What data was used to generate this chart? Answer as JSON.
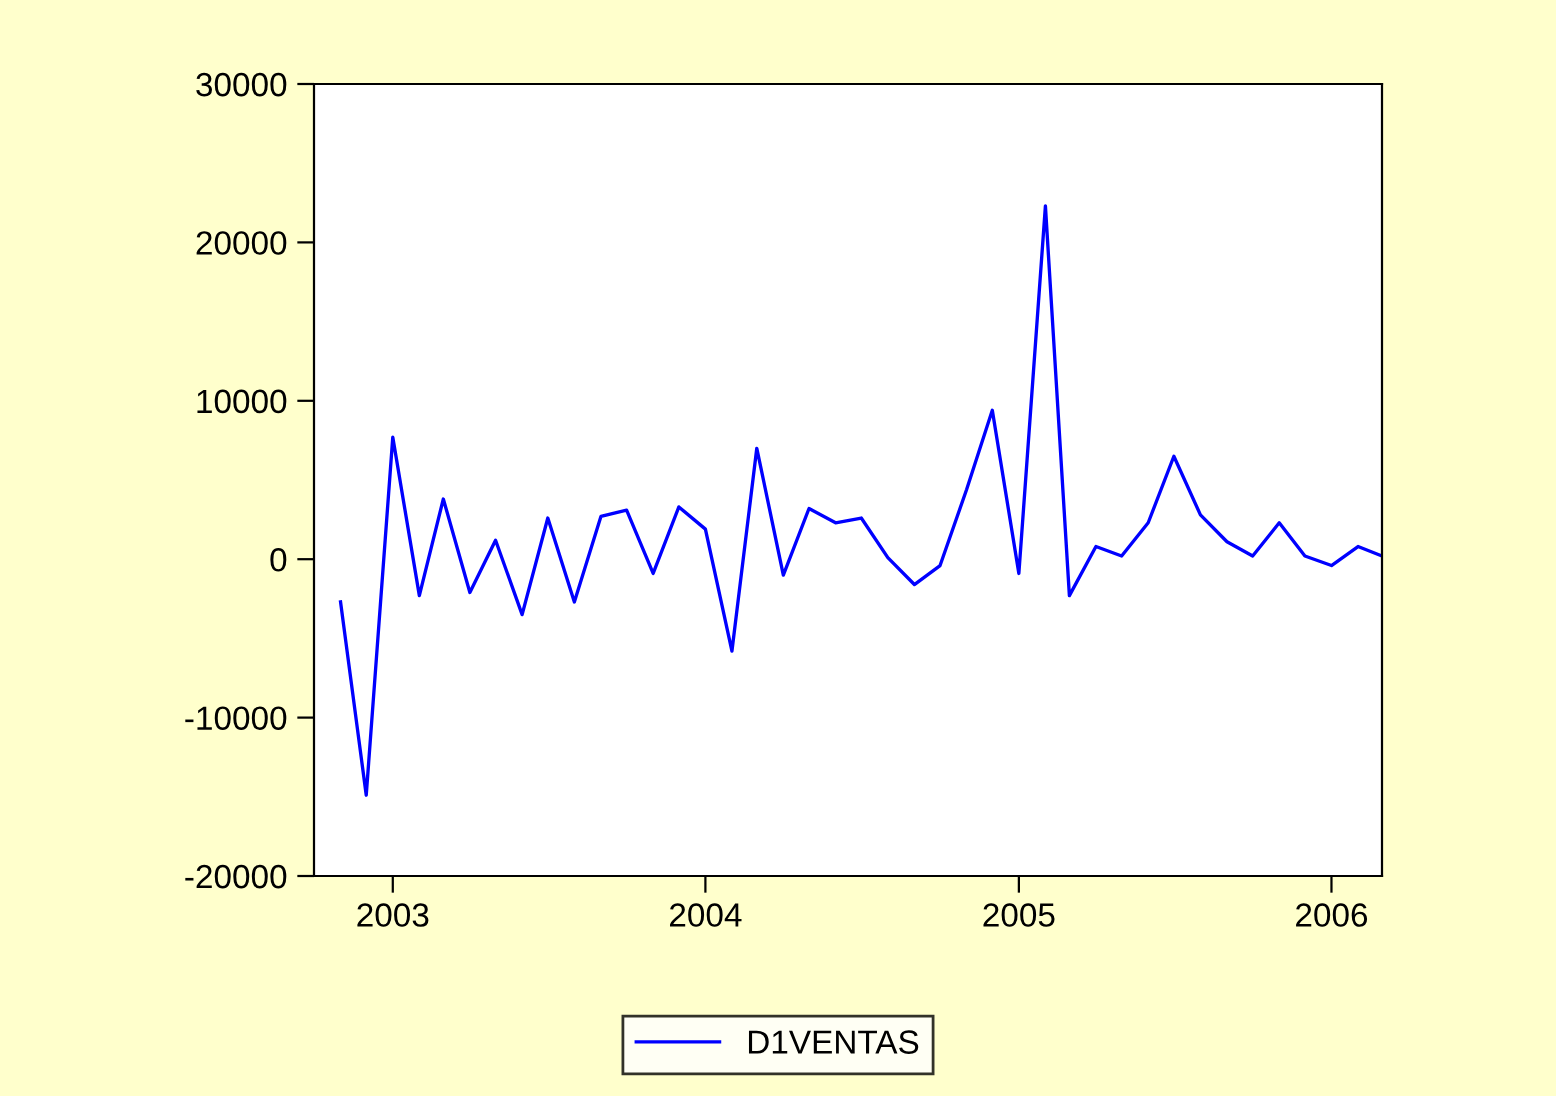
{
  "chart_data": {
    "type": "line",
    "x": [
      "2002-11",
      "2002-12",
      "2003-01",
      "2003-02",
      "2003-03",
      "2003-04",
      "2003-05",
      "2003-06",
      "2003-07",
      "2003-08",
      "2003-09",
      "2003-10",
      "2003-11",
      "2003-12",
      "2004-01",
      "2004-02",
      "2004-03",
      "2004-04",
      "2004-05",
      "2004-06",
      "2004-07",
      "2004-08",
      "2004-09",
      "2004-10",
      "2004-11",
      "2004-12",
      "2005-01",
      "2005-02",
      "2005-03",
      "2005-04",
      "2005-05",
      "2005-06",
      "2005-07",
      "2005-08",
      "2005-09",
      "2005-10",
      "2005-11",
      "2005-12",
      "2006-01",
      "2006-02",
      "2006-03"
    ],
    "series": [
      {
        "name": "D1VENTAS",
        "color": "#0000ff",
        "values": [
          -2700,
          -14900,
          7700,
          -2300,
          3800,
          -2100,
          1200,
          -3500,
          2600,
          -2700,
          2700,
          3100,
          -900,
          3300,
          1900,
          -5800,
          7000,
          -1000,
          3200,
          2300,
          2600,
          100,
          -1600,
          -400,
          4400,
          9400,
          -900,
          22300,
          -2300,
          800,
          200,
          2300,
          6500,
          2800,
          1100,
          200,
          2300,
          200,
          -400,
          800,
          200
        ]
      }
    ],
    "xlim": [
      "2002-10",
      "2006-03"
    ],
    "xticks": [
      {
        "value": "2003-01",
        "label": "2003"
      },
      {
        "value": "2004-01",
        "label": "2004"
      },
      {
        "value": "2005-01",
        "label": "2005"
      },
      {
        "value": "2006-01",
        "label": "2006"
      }
    ],
    "ylim": [
      -20000,
      30000
    ],
    "yticks": [
      -20000,
      -10000,
      0,
      10000,
      20000,
      30000
    ],
    "grid": false,
    "legend": "bottom"
  }
}
